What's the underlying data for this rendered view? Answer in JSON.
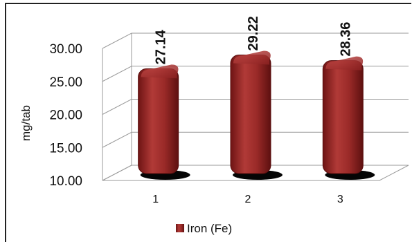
{
  "chart_data": {
    "type": "bar",
    "categories": [
      "1",
      "2",
      "3"
    ],
    "series": [
      {
        "name": "Iron (Fe)",
        "values": [
          27.14,
          29.22,
          28.36
        ],
        "color": "#8b1e1e"
      }
    ],
    "data_labels": [
      "27.14",
      "29.22",
      "28.36"
    ],
    "ylabel": "mg/tab",
    "xlabel": "",
    "ylim": [
      10,
      30
    ],
    "yticks": [
      "10.00",
      "15.00",
      "20.00",
      "25.00",
      "30.00"
    ],
    "grid": true,
    "legend": "bottom",
    "style": "3d-cylinder"
  }
}
